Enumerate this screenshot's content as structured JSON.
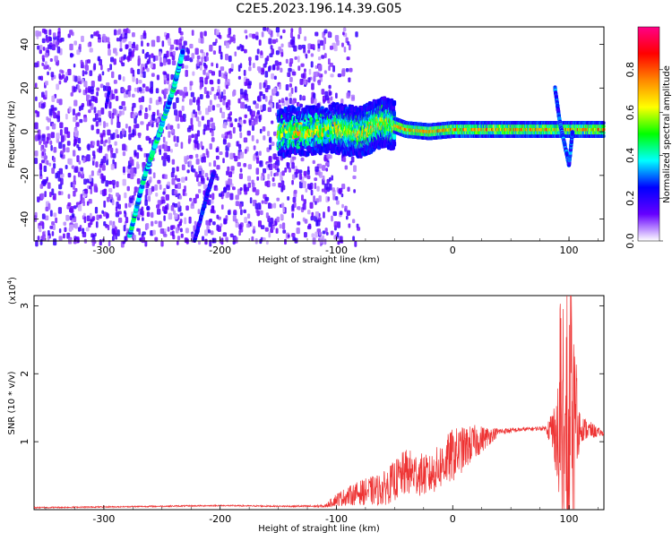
{
  "title": "C2E5.2023.196.14.39.G05",
  "chart_data": [
    {
      "type": "heatmap",
      "xlabel": "Height of straight line (km)",
      "ylabel": "Frequency (Hz)",
      "xlim": [
        -360,
        130
      ],
      "ylim": [
        -50,
        48
      ],
      "xticks": [
        -300,
        -200,
        -100,
        0,
        100
      ],
      "yticks": [
        -40,
        -20,
        0,
        20,
        40
      ],
      "colorbar": {
        "label": "Normalized spectral amplitude",
        "range": [
          0,
          1
        ],
        "ticks": [
          "0.0",
          "0.2",
          "0.4",
          "0.6",
          "0.8"
        ],
        "colormap": [
          "#ffffff",
          "#6600ff",
          "#0000ff",
          "#00ffff",
          "#00ff00",
          "#ffff00",
          "#ff8800",
          "#ff0000",
          "#ff0088"
        ]
      },
      "features": [
        {
          "name": "noise region",
          "x_range": [
            -360,
            -110
          ],
          "y_range": [
            -50,
            48
          ],
          "amplitude": 0.15
        },
        {
          "name": "diagonal trace 1",
          "points": [
            [
              -278,
              -48
            ],
            [
              -265,
              -20
            ],
            [
              -252,
              0
            ],
            [
              -240,
              20
            ],
            [
              -232,
              37
            ]
          ],
          "amplitude": 0.4
        },
        {
          "name": "diagonal trace 2",
          "points": [
            [
              -222,
              -50
            ],
            [
              -212,
              -30
            ],
            [
              -205,
              -18
            ]
          ],
          "amplitude": 0.25
        },
        {
          "name": "short trace",
          "points": [
            [
              -298,
              12
            ],
            [
              -295,
              20
            ]
          ],
          "amplitude": 0.2
        },
        {
          "name": "carrier",
          "points": [
            [
              -150,
              0
            ],
            [
              -100,
              2
            ],
            [
              -80,
              0
            ],
            [
              -60,
              5
            ],
            [
              -40,
              1
            ],
            [
              -20,
              0
            ],
            [
              0,
              1
            ],
            [
              50,
              1
            ],
            [
              90,
              1
            ],
            [
              130,
              1
            ]
          ],
          "amplitude": 0.7
        },
        {
          "name": "disturbance",
          "points": [
            [
              88,
              20
            ],
            [
              92,
              5
            ],
            [
              96,
              -5
            ],
            [
              100,
              -15
            ],
            [
              103,
              0
            ]
          ],
          "amplitude": 0.3
        }
      ]
    },
    {
      "type": "line",
      "xlabel": "Height of straight line (km)",
      "ylabel": "SNR (10 * v/v)",
      "y_scale_label": "(x10",
      "y_scale_exp": "4",
      "y_scale_close": ")",
      "xlim": [
        -360,
        130
      ],
      "ylim": [
        0,
        3.15
      ],
      "xticks": [
        -300,
        -200,
        -100,
        0,
        100
      ],
      "yticks": [
        1,
        2,
        3
      ],
      "color": "#ee3333",
      "x": [
        -360,
        -300,
        -200,
        -150,
        -110,
        -100,
        -80,
        -60,
        -40,
        -20,
        0,
        20,
        40,
        60,
        80,
        88,
        95,
        100,
        105,
        110,
        130
      ],
      "y": [
        0.03,
        0.04,
        0.06,
        0.05,
        0.05,
        0.15,
        0.25,
        0.3,
        0.55,
        0.5,
        0.8,
        1.0,
        1.15,
        1.18,
        1.2,
        1.15,
        0.9,
        0.7,
        1.2,
        1.2,
        1.12
      ],
      "noise": [
        0.01,
        0.01,
        0.01,
        0.01,
        0.02,
        0.1,
        0.18,
        0.25,
        0.35,
        0.3,
        0.4,
        0.25,
        0.05,
        0.03,
        0.03,
        0.5,
        1.5,
        2.0,
        1.2,
        0.2,
        0.03
      ]
    }
  ]
}
